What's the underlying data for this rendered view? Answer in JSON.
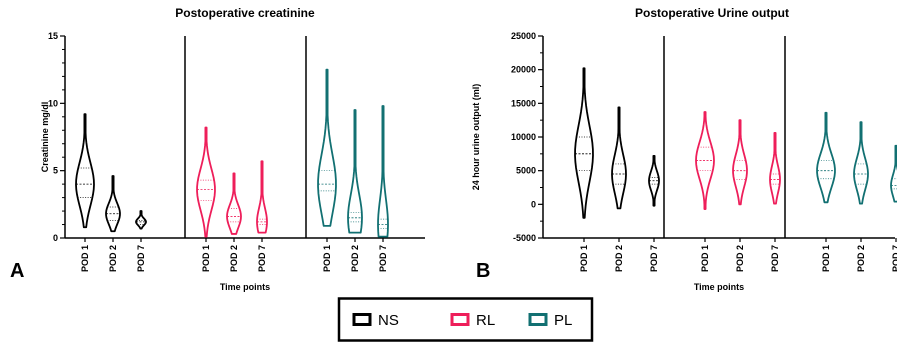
{
  "figure": {
    "colors": {
      "NS": "#000000",
      "RL": "#ee1e5a",
      "PL": "#127072"
    },
    "legend": {
      "entries": [
        "NS",
        "RL",
        "PL"
      ],
      "placement": "bottom-center"
    }
  },
  "chart_data": [
    {
      "panel_letter": "A",
      "type": "violin",
      "title": "Postoperative creatinine",
      "xlabel": "Time points",
      "ylabel": "Creatinine mg/dl",
      "ylim": [
        0,
        15
      ],
      "yticks": [
        "0",
        "5",
        "10",
        "15"
      ],
      "categories": [
        "POD 1",
        "POD 2",
        "POD 7"
      ],
      "series": [
        {
          "name": "NS",
          "values": [
            {
              "category": "POD 1",
              "min": 0.8,
              "max": 9.2,
              "median": 4.0,
              "q1": 3.0,
              "q3": 5.2
            },
            {
              "category": "POD 2",
              "min": 0.5,
              "max": 4.6,
              "median": 1.8,
              "q1": 1.3,
              "q3": 2.3
            },
            {
              "category": "POD 7",
              "min": 0.7,
              "max": 2.0,
              "median": 1.2,
              "q1": 1.0,
              "q3": 1.3
            }
          ]
        },
        {
          "name": "RL",
          "values": [
            {
              "category": "POD 1",
              "min": 0.1,
              "max": 8.2,
              "median": 3.6,
              "q1": 2.8,
              "q3": 4.3
            },
            {
              "category": "POD 2",
              "min": 0.3,
              "max": 4.8,
              "median": 1.6,
              "q1": 1.2,
              "q3": 2.2
            },
            {
              "category": "POD 7",
              "min": 0.4,
              "max": 5.7,
              "median": 1.2,
              "q1": 1.0,
              "q3": 1.4
            }
          ]
        },
        {
          "name": "PL",
          "values": [
            {
              "category": "POD 1",
              "min": 0.9,
              "max": 12.5,
              "median": 4.0,
              "q1": 3.5,
              "q3": 5.0
            },
            {
              "category": "POD 2",
              "min": 0.4,
              "max": 9.5,
              "median": 1.5,
              "q1": 1.2,
              "q3": 1.9
            },
            {
              "category": "POD 7",
              "min": 0.1,
              "max": 9.8,
              "median": 1.0,
              "q1": 0.7,
              "q3": 1.4
            }
          ]
        }
      ]
    },
    {
      "panel_letter": "B",
      "type": "violin",
      "title": "Postoperative Urine output",
      "xlabel": "Time points",
      "ylabel": "24 hour urine output (ml)",
      "ylim": [
        -5000,
        25000
      ],
      "yticks": [
        "-5000",
        "0",
        "5000",
        "10000",
        "15000",
        "20000",
        "25000"
      ],
      "categories": [
        "POD 1",
        "POD 2",
        "POD 7"
      ],
      "series": [
        {
          "name": "NS",
          "values": [
            {
              "category": "POD 1",
              "min": -2000,
              "max": 20200,
              "median": 7500,
              "q1": 5000,
              "q3": 10000
            },
            {
              "category": "POD 2",
              "min": -600,
              "max": 14400,
              "median": 4500,
              "q1": 3000,
              "q3": 6000
            },
            {
              "category": "POD 7",
              "min": -200,
              "max": 7200,
              "median": 3500,
              "q1": 3000,
              "q3": 4000
            }
          ]
        },
        {
          "name": "RL",
          "values": [
            {
              "category": "POD 1",
              "min": -700,
              "max": 13700,
              "median": 6500,
              "q1": 5000,
              "q3": 8500
            },
            {
              "category": "POD 2",
              "min": 0,
              "max": 12500,
              "median": 5000,
              "q1": 3700,
              "q3": 6500
            },
            {
              "category": "POD 7",
              "min": 100,
              "max": 10600,
              "median": 3700,
              "q1": 3000,
              "q3": 4500
            }
          ]
        },
        {
          "name": "PL",
          "values": [
            {
              "category": "POD 1",
              "min": 300,
              "max": 13600,
              "median": 5000,
              "q1": 3800,
              "q3": 6500
            },
            {
              "category": "POD 2",
              "min": 100,
              "max": 12200,
              "median": 4500,
              "q1": 3000,
              "q3": 6000
            },
            {
              "category": "POD 7",
              "min": 400,
              "max": 8700,
              "median": 2800,
              "q1": 2300,
              "q3": 3800
            }
          ]
        }
      ]
    }
  ]
}
